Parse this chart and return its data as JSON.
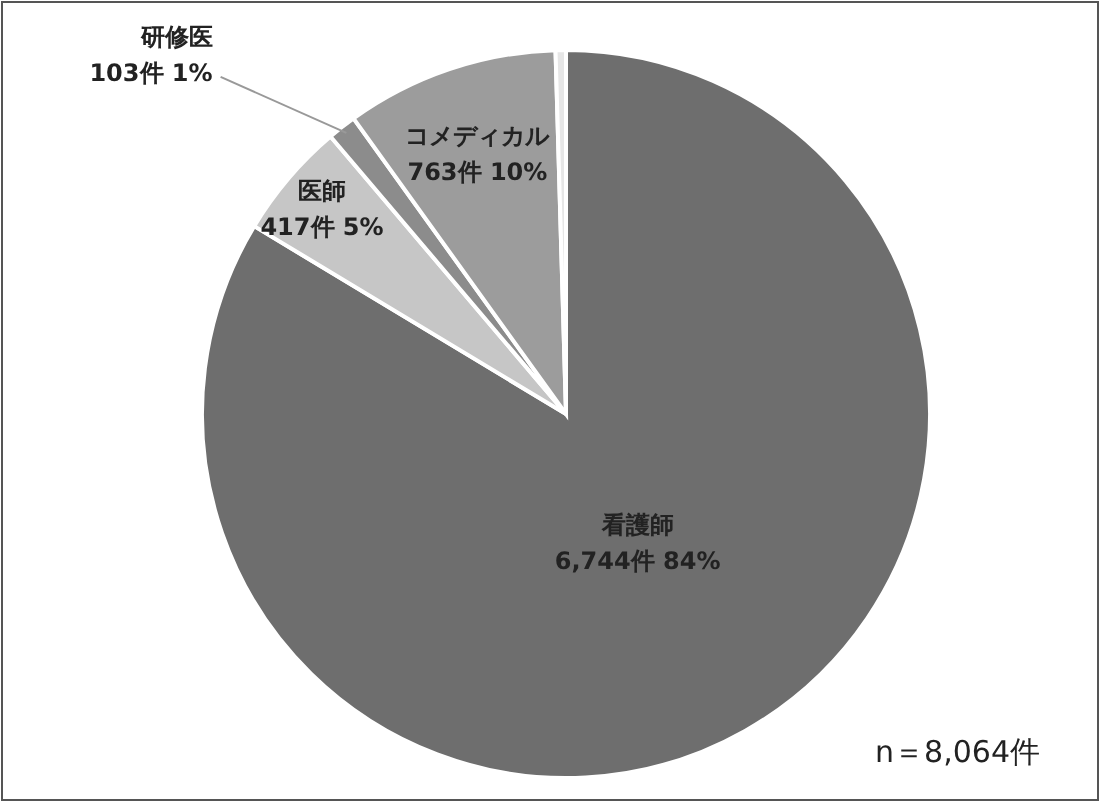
{
  "chart_data": {
    "type": "pie",
    "categories": [
      "看護師",
      "医師",
      "研修医",
      "コメディカル",
      null
    ],
    "values": [
      6744,
      417,
      103,
      763,
      37
    ],
    "colors": [
      "#6e6e6e",
      "#c6c6c6",
      "#8c8c8c",
      "#9c9c9c",
      "#e6e6e6"
    ],
    "value_labels": [
      "6,744件 84%",
      "417件 5%",
      "103件 1%",
      "763件 10%",
      null
    ],
    "annotations": [
      "n＝8,064件"
    ]
  }
}
